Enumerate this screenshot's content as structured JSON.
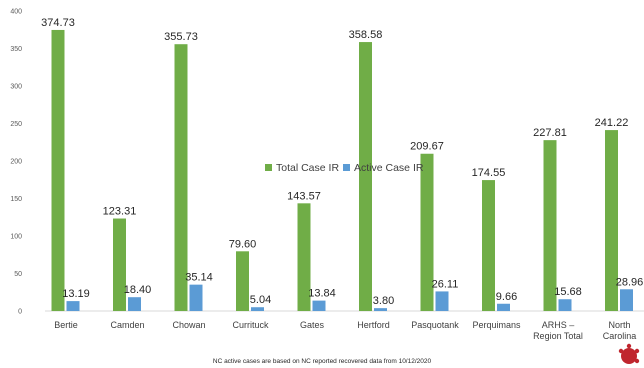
{
  "chart_data": {
    "type": "bar",
    "categories": [
      "Bertie",
      "Camden",
      "Chowan",
      "Currituck",
      "Gates",
      "Hertford",
      "Pasquotank",
      "Perquimans",
      "ARHS –\nRegion Total",
      "North\nCarolina"
    ],
    "series": [
      {
        "name": "Total Case IR",
        "color": "#70ad47",
        "values": [
          374.73,
          123.31,
          355.73,
          79.6,
          143.57,
          358.58,
          209.67,
          174.55,
          227.81,
          241.22
        ],
        "labels": [
          "374.73",
          "123.31",
          "355.73",
          "79.60",
          "143.57",
          "358.58",
          "209.67",
          "174.55",
          "227.81",
          "241.22"
        ]
      },
      {
        "name": "Active Case IR",
        "color": "#5b9bd5",
        "values": [
          13.19,
          18.4,
          35.14,
          5.04,
          13.84,
          3.8,
          26.11,
          9.66,
          15.68,
          28.96
        ],
        "labels": [
          "13.19",
          "18.40",
          "35.14",
          "5.04",
          "13.84",
          "3.80",
          "26.11",
          "9.66",
          "15.68",
          "28.96"
        ]
      }
    ],
    "yticks": [
      0,
      50,
      100,
      150,
      200,
      250,
      300,
      350,
      400
    ],
    "ylim": [
      0,
      400
    ],
    "grid": false,
    "legend_position": "center"
  },
  "footnote": "NC active cases are based on NC reported recovered data from 10/12/2020",
  "decor": {
    "virus_icon_color": "#c0262e"
  }
}
